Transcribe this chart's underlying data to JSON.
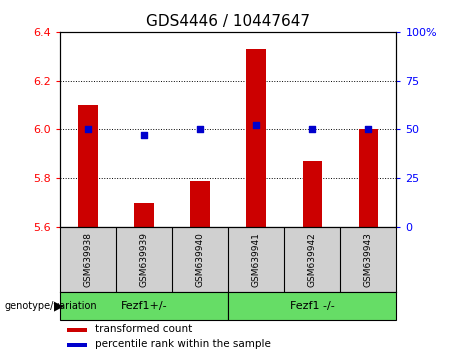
{
  "title": "GDS4446 / 10447647",
  "samples": [
    "GSM639938",
    "GSM639939",
    "GSM639940",
    "GSM639941",
    "GSM639942",
    "GSM639943"
  ],
  "transformed_count": [
    6.1,
    5.7,
    5.79,
    6.33,
    5.87,
    6.0
  ],
  "percentile_rank": [
    50,
    47,
    50,
    52,
    50,
    50
  ],
  "ylim_left": [
    5.6,
    6.4
  ],
  "ylim_right": [
    0,
    100
  ],
  "yticks_left": [
    5.6,
    5.8,
    6.0,
    6.2,
    6.4
  ],
  "yticks_right": [
    0,
    25,
    50,
    75,
    100
  ],
  "ytick_labels_right": [
    "0",
    "25",
    "50",
    "75",
    "100%"
  ],
  "bar_color": "#cc0000",
  "dot_color": "#0000cc",
  "bar_width": 0.35,
  "group1_label": "Fezf1+/-",
  "group2_label": "Fezf1 -/-",
  "group_color": "#66dd66",
  "sample_box_color": "#d0d0d0",
  "background_color": "#ffffff",
  "plot_bg_color": "#ffffff",
  "legend_red_label": "transformed count",
  "legend_blue_label": "percentile rank within the sample",
  "genotype_label": "genotype/variation",
  "title_fontsize": 11,
  "tick_fontsize": 8,
  "sample_fontsize": 6.5,
  "legend_fontsize": 7.5,
  "genotype_fontsize": 8
}
